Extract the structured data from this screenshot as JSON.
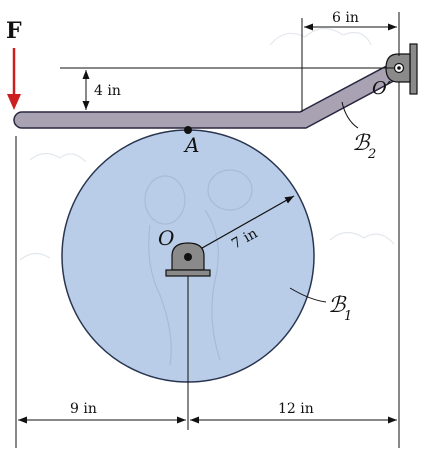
{
  "diagram": {
    "force_label": "F",
    "point_A": "A",
    "point_O": "O",
    "point_O_prime": "O′",
    "body_B1": "ℬ",
    "body_B1_sub": "1",
    "body_B2": "ℬ",
    "body_B2_sub": "2",
    "dim_top": "6 in",
    "dim_vertical": "4 in",
    "dim_radius": "7 in",
    "dim_bottom_left": "9 in",
    "dim_bottom_right": "12 in"
  },
  "colors": {
    "force_arrow": "#cc1f1f",
    "disk_fill": "#b9cde8",
    "disk_stroke": "#2a3550",
    "bar_fill": "#a9a2b3",
    "bar_stroke": "#2b2740",
    "support_fill": "#8a8a8a"
  }
}
